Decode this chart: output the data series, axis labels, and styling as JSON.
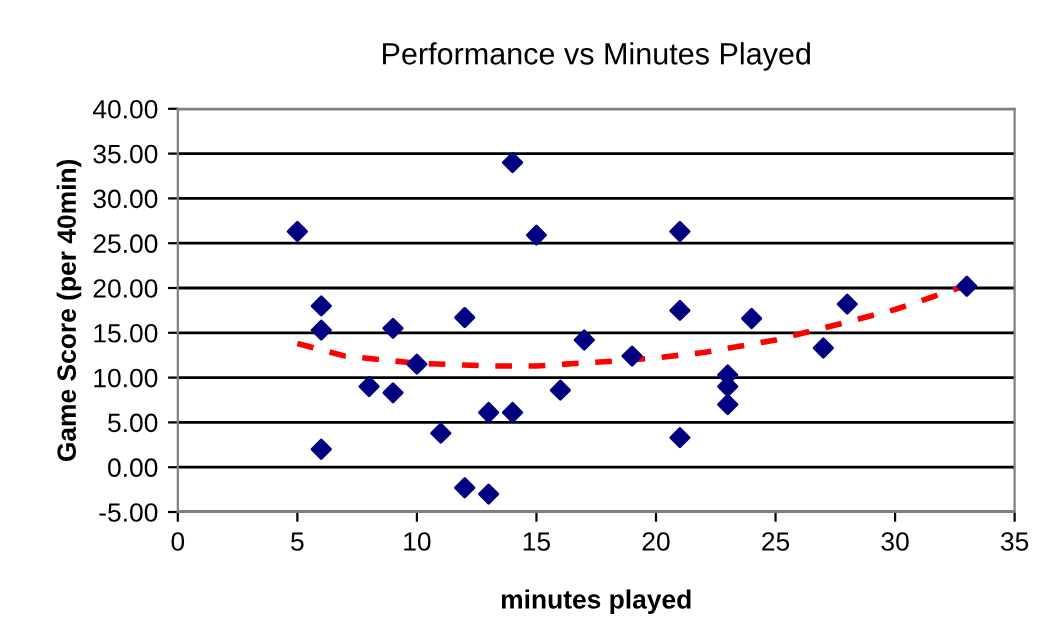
{
  "chart_data": {
    "type": "scatter",
    "title": "Performance vs Minutes Played",
    "xlabel": "minutes played",
    "ylabel": "Game Score (per 40min)",
    "xlim": [
      0,
      35
    ],
    "xticks": [
      0,
      5,
      10,
      15,
      20,
      25,
      30,
      35
    ],
    "ylim": [
      -5,
      40
    ],
    "yticks": [
      {
        "value": -5,
        "label": "-5.00"
      },
      {
        "value": 0,
        "label": "0.00"
      },
      {
        "value": 5,
        "label": "5.00"
      },
      {
        "value": 10,
        "label": "10.00"
      },
      {
        "value": 15,
        "label": "15.00"
      },
      {
        "value": 20,
        "label": "20.00"
      },
      {
        "value": 25,
        "label": "25.00"
      },
      {
        "value": 30,
        "label": "30.00"
      },
      {
        "value": 35,
        "label": "35.00"
      },
      {
        "value": 40,
        "label": "40.00"
      }
    ],
    "grid": "y",
    "marker": "diamond",
    "series": [
      {
        "color": "#000080",
        "x": [
          5,
          6,
          6,
          6,
          8,
          9,
          9,
          10,
          11,
          12,
          12,
          13,
          13,
          14,
          14,
          15,
          16,
          17,
          19,
          21,
          21,
          21,
          23,
          23,
          23,
          24,
          27,
          28,
          33
        ],
        "values": [
          26.3,
          18.0,
          15.3,
          2.0,
          9.0,
          15.5,
          8.3,
          11.5,
          3.8,
          16.7,
          -2.3,
          6.1,
          -3.0,
          34.0,
          6.1,
          25.9,
          8.6,
          14.2,
          12.4,
          26.3,
          17.5,
          3.3,
          10.3,
          9.0,
          7.0,
          16.6,
          13.3,
          18.2,
          20.2
        ]
      },
      {
        "type": "line",
        "color": "#ff0000",
        "line_style": "dashed",
        "marker": "none",
        "x": [
          5,
          7,
          10,
          13,
          15,
          18,
          20,
          22,
          25,
          28,
          30,
          33
        ],
        "values": [
          13.8,
          12.4,
          11.6,
          11.3,
          11.3,
          11.8,
          12.2,
          12.8,
          14.2,
          16.2,
          17.6,
          20.3
        ]
      }
    ]
  }
}
